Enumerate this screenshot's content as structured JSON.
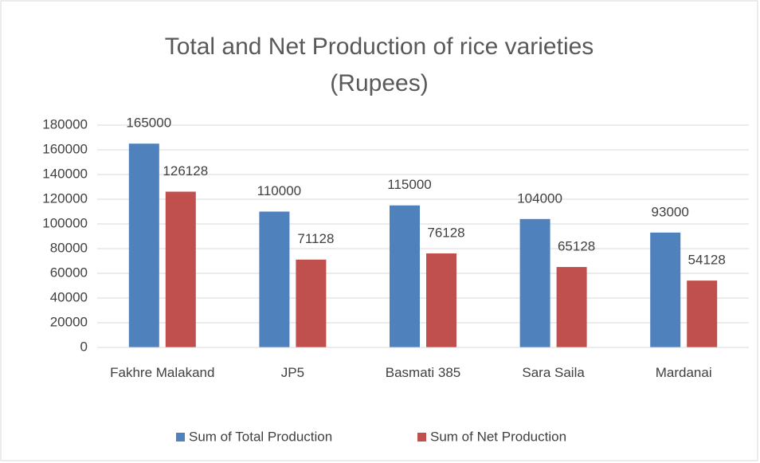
{
  "chart_data": {
    "type": "bar",
    "title": [
      "Total and Net Production of rice varieties",
      "(Rupees)"
    ],
    "categories": [
      "Fakhre Malakand",
      "JP5",
      "Basmati 385",
      "Sara Saila",
      "Mardanai"
    ],
    "series": [
      {
        "name": "Sum of Total Production",
        "color": "#4f81bd",
        "values": [
          165000,
          110000,
          115000,
          104000,
          93000
        ]
      },
      {
        "name": "Sum of Net Production",
        "color": "#c0504d",
        "values": [
          126128,
          71128,
          76128,
          65128,
          54128
        ]
      }
    ],
    "ylim": [
      0,
      180000
    ],
    "yticks": [
      0,
      20000,
      40000,
      60000,
      80000,
      100000,
      120000,
      140000,
      160000,
      180000
    ],
    "grid": true,
    "legend": "bottom"
  }
}
